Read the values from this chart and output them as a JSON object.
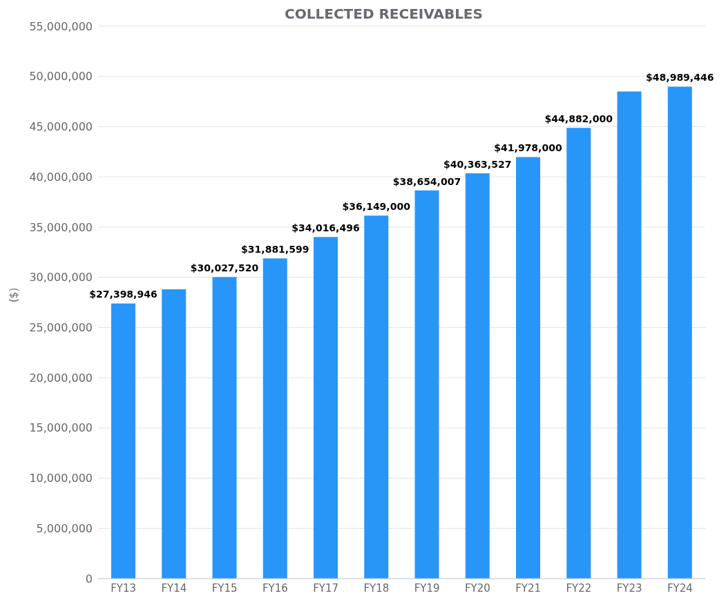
{
  "chart_data": {
    "type": "bar",
    "title": "COLLECTED RECEIVABLES",
    "ylabel": "($)",
    "categories": [
      "FY13",
      "FY14",
      "FY15",
      "FY16",
      "FY17",
      "FY18",
      "FY19",
      "FY20",
      "FY21",
      "FY22",
      "FY23",
      "FY24"
    ],
    "values": [
      27398946,
      28800000,
      30027520,
      31881599,
      34016496,
      36149000,
      38654007,
      40363527,
      41978000,
      44882000,
      48500000,
      48989446
    ],
    "value_labels": [
      "$27,398,946",
      null,
      "$30,027,520",
      "$31,881,599",
      "$34,016,496",
      "$36,149,000",
      "$38,654,007",
      "$40,363,527",
      "$41,978,000",
      "$44,882,000",
      null,
      "$48,989,446"
    ],
    "color": "#2896f8",
    "ylim": [
      0,
      55000000
    ],
    "yticks": [
      {
        "value": 0,
        "label": "0"
      },
      {
        "value": 5000000,
        "label": "5,000,000"
      },
      {
        "value": 10000000,
        "label": "10,000,000"
      },
      {
        "value": 15000000,
        "label": "15,000,000"
      },
      {
        "value": 20000000,
        "label": "20,000,000"
      },
      {
        "value": 25000000,
        "label": "25,000,000"
      },
      {
        "value": 30000000,
        "label": "30,000,000"
      },
      {
        "value": 35000000,
        "label": "35,000,000"
      },
      {
        "value": 40000000,
        "label": "40,000,000"
      },
      {
        "value": 45000000,
        "label": "45,000,000"
      },
      {
        "value": 50000000,
        "label": "50,000,000"
      },
      {
        "value": 55000000,
        "label": "55,000,000"
      }
    ],
    "grid": "y",
    "legend": false
  }
}
